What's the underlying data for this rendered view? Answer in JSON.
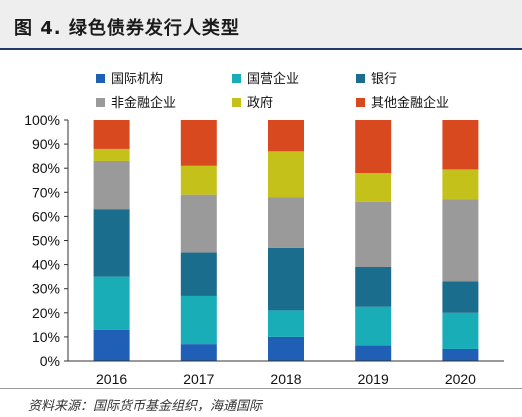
{
  "header": {
    "title": "图 4. 绿色债券发行人类型"
  },
  "footer": {
    "source": "资料来源：国际货币基金组织，海通国际"
  },
  "chart_data": {
    "type": "bar",
    "stacked": true,
    "categories": [
      "2016",
      "2017",
      "2018",
      "2019",
      "2020"
    ],
    "y_ticks": [
      "0%",
      "10%",
      "20%",
      "30%",
      "40%",
      "50%",
      "60%",
      "70%",
      "80%",
      "90%",
      "100%"
    ],
    "ylim": [
      0,
      100
    ],
    "legend_position": "top",
    "series": [
      {
        "name": "国际机构",
        "color": "#1f5fb5",
        "values": [
          13,
          7,
          10,
          6.5,
          5
        ]
      },
      {
        "name": "国营企业",
        "color": "#19adb8",
        "values": [
          22,
          20,
          11,
          16,
          15
        ]
      },
      {
        "name": "银行",
        "color": "#1b6d8e",
        "values": [
          28,
          18,
          26,
          16.5,
          13
        ]
      },
      {
        "name": "非金融企业",
        "color": "#9a9a9a",
        "values": [
          20,
          24,
          21,
          27,
          34
        ]
      },
      {
        "name": "政府",
        "color": "#c4c21a",
        "values": [
          5,
          12,
          19,
          12,
          12.5
        ]
      },
      {
        "name": "其他金融企业",
        "color": "#d8491f",
        "values": [
          12,
          19,
          13,
          22,
          20.5
        ]
      }
    ]
  }
}
